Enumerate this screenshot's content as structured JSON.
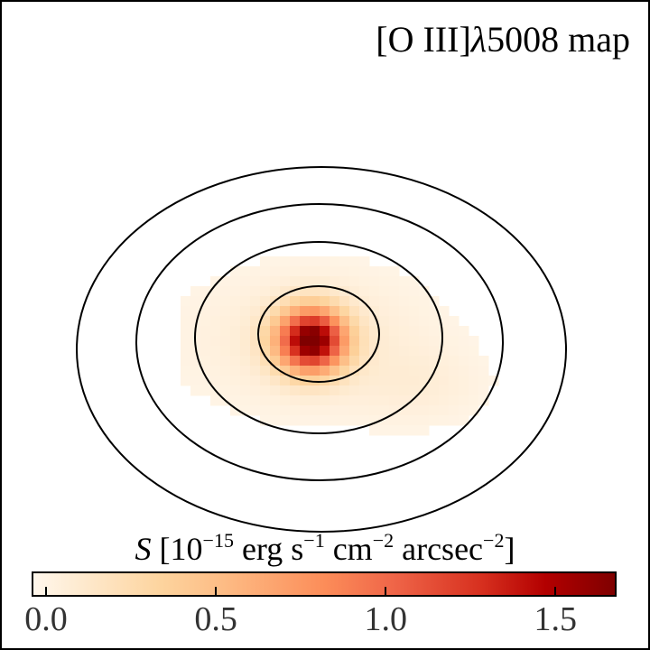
{
  "chart_data": {
    "type": "heatmap",
    "title_text": "[O III]",
    "title_lambda": "λ",
    "title_rest": "5008 map",
    "colormap": "OrRd",
    "colorbar": {
      "vmin": 0.0,
      "vmax": 1.68,
      "ticks": [
        0.0,
        0.5,
        1.0,
        1.5
      ],
      "tick_labels": [
        "0.0",
        "0.5",
        "1.0",
        "1.5"
      ],
      "label_symbol": "S",
      "label_open": " [10",
      "label_exp1": "−15",
      "label_t1": " erg s",
      "label_exp2": "−1",
      "label_t2": " cm",
      "label_exp3": "−2",
      "label_t3": " arcsec",
      "label_exp4": "−2",
      "label_close": "]"
    },
    "peak_value": 1.68,
    "contour_count": 4
  }
}
